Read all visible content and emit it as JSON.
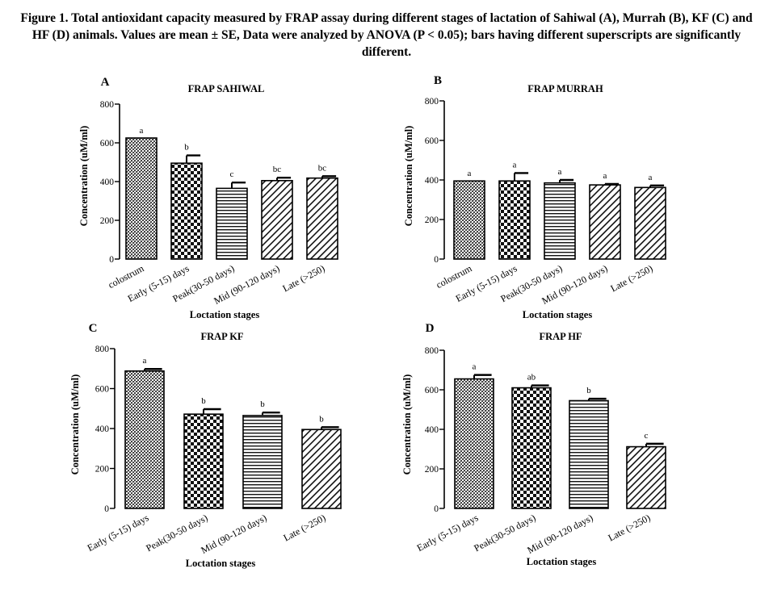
{
  "caption": "Figure 1. Total antioxidant capacity measured by FRAP assay during different stages of lactation of Sahiwal (A), Murrah (B), KF (C) and HF (D) animals. Values are mean ± SE, Data were analyzed by ANOVA (P < 0.05); bars having different superscripts are significantly different.",
  "chart_data": [
    {
      "type": "bar",
      "panel_letter": "A",
      "title": "FRAP SAHIWAL",
      "ylabel": "Concentration (uM/ml)",
      "xlabel": "Loctation stages",
      "ylim": [
        0,
        800
      ],
      "yticks": [
        0,
        200,
        400,
        600,
        800
      ],
      "categories": [
        "colostrum",
        "Early (5-15) days",
        "Peak(30-50 days)",
        "Mid (90-120 days)",
        "Late (>250)"
      ],
      "values": [
        625,
        495,
        365,
        405,
        418
      ],
      "errors": [
        0,
        40,
        30,
        15,
        10
      ],
      "superscripts": [
        "a",
        "b",
        "c",
        "bc",
        "bc"
      ],
      "patterns": [
        "fine",
        "checker",
        "hline",
        "diag",
        "diag"
      ]
    },
    {
      "type": "bar",
      "panel_letter": "B",
      "title": "FRAP MURRAH",
      "ylabel": "Concentration (uM/ml)",
      "xlabel": "Loctation stages",
      "ylim": [
        0,
        800
      ],
      "yticks": [
        0,
        200,
        400,
        600,
        800
      ],
      "categories": [
        "colostrum",
        "Early (5-15) days",
        "Peak(30-50 days)",
        "Mid (90-120 days)",
        "Late (>250)"
      ],
      "values": [
        395,
        395,
        385,
        375,
        362
      ],
      "errors": [
        0,
        40,
        15,
        5,
        10
      ],
      "superscripts": [
        "a",
        "a",
        "a",
        "a",
        "a"
      ],
      "patterns": [
        "fine",
        "checker",
        "hline",
        "diag",
        "diag"
      ]
    },
    {
      "type": "bar",
      "panel_letter": "C",
      "title": "FRAP KF",
      "ylabel": "Concentration (uM/ml)",
      "xlabel": "Loctation stages",
      "ylim": [
        0,
        800
      ],
      "yticks": [
        0,
        200,
        400,
        600,
        800
      ],
      "categories": [
        "Early (5-15) days",
        "Peak(30-50 days)",
        "Mid (90-120 days)",
        "Late (>250)"
      ],
      "values": [
        688,
        472,
        465,
        395
      ],
      "errors": [
        10,
        25,
        15,
        12
      ],
      "superscripts": [
        "a",
        "b",
        "b",
        "b"
      ],
      "patterns": [
        "fine",
        "checker",
        "hline",
        "diag"
      ]
    },
    {
      "type": "bar",
      "panel_letter": "D",
      "title": "FRAP HF",
      "ylabel": "Concentration (uM/ml)",
      "xlabel": "Loctation stages",
      "ylim": [
        0,
        800
      ],
      "yticks": [
        0,
        200,
        400,
        600,
        800
      ],
      "categories": [
        "Early (5-15) days",
        "Peak(30-50 days)",
        "Mid (90-120 days)",
        "Late (>250)"
      ],
      "values": [
        655,
        610,
        545,
        312
      ],
      "errors": [
        20,
        12,
        10,
        15
      ],
      "superscripts": [
        "a",
        "ab",
        "b",
        "c"
      ],
      "patterns": [
        "fine",
        "checker",
        "hline",
        "diag"
      ]
    }
  ]
}
